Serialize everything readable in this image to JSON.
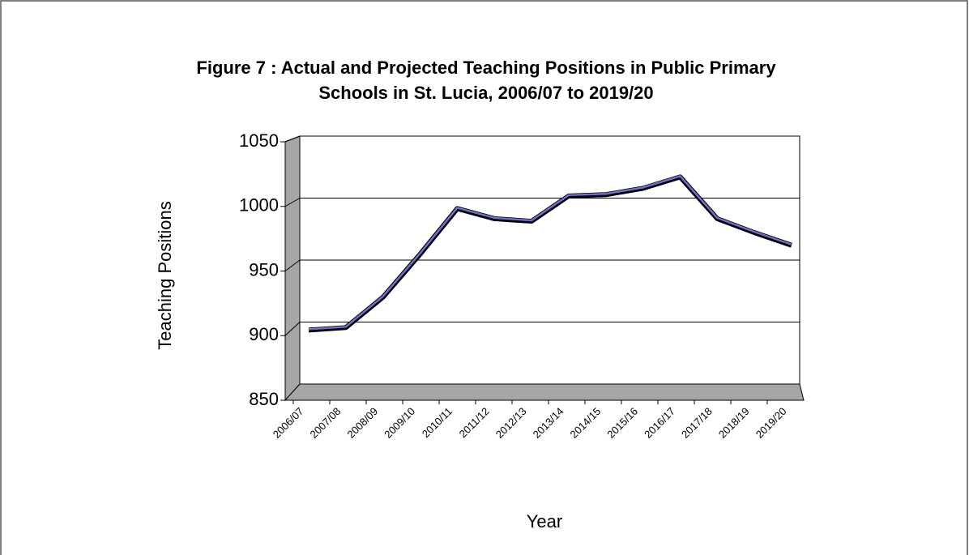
{
  "chart_data": {
    "type": "line",
    "title": [
      "Figure 7 : Actual and Projected Teaching Positions in Public Primary",
      "Schools in St. Lucia, 2006/07 to 2019/20"
    ],
    "x_label": "Year",
    "y_label": "Teaching Positions",
    "categories": [
      "2006/07",
      "2007/08",
      "2008/09",
      "2009/10",
      "2010/11",
      "2011/12",
      "2012/13",
      "2013/14",
      "2014/15",
      "2015/16",
      "2016/17",
      "2017/18",
      "2018/19",
      "2019/20"
    ],
    "values": [
      899,
      901,
      925,
      959,
      995,
      987,
      985,
      1005,
      1006,
      1011,
      1020,
      987,
      976,
      966
    ],
    "color": "#6f6fcf",
    "ylim": [
      850,
      1050
    ],
    "yticks": [
      850,
      900,
      950,
      1000,
      1050
    ],
    "grid": true
  }
}
